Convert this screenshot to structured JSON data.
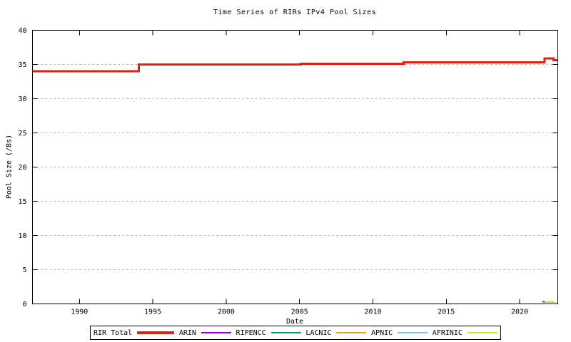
{
  "chart_data": {
    "type": "line",
    "style": "step",
    "title": "Time Series of RIRs IPv4 Pool Sizes",
    "xlabel": "Date",
    "ylabel": "Pool Size (/8s)",
    "xlim": [
      1986.8,
      2022.6
    ],
    "ylim": [
      0,
      40
    ],
    "xticks": [
      1990,
      1995,
      2000,
      2005,
      2010,
      2015,
      2020
    ],
    "yticks": [
      0,
      5,
      10,
      15,
      20,
      25,
      30,
      35,
      40
    ],
    "grid": "horizontal-dashed",
    "grid_color": "#b0b0b0",
    "axis_color": "#000000",
    "legend_position": "bottom-outside-boxed",
    "series": [
      {
        "name": "RIR Total",
        "color": "#dd2211",
        "line_width": 3,
        "points": [
          [
            1986.8,
            34.0
          ],
          [
            1994.05,
            34.0
          ],
          [
            1994.05,
            35.0
          ],
          [
            2005.1,
            35.0
          ],
          [
            2005.1,
            35.1
          ],
          [
            2012.1,
            35.1
          ],
          [
            2012.1,
            35.3
          ],
          [
            2021.7,
            35.3
          ],
          [
            2021.7,
            35.9
          ],
          [
            2022.3,
            35.9
          ],
          [
            2022.3,
            35.65
          ],
          [
            2022.6,
            35.65
          ]
        ]
      },
      {
        "name": "ARIN",
        "color": "#9400d3",
        "line_width": 2,
        "points": [
          [
            2021.55,
            0.3
          ],
          [
            2021.7,
            0.3
          ]
        ]
      },
      {
        "name": "RIPENCC",
        "color": "#00a27a",
        "line_width": 2,
        "points": []
      },
      {
        "name": "LACNIC",
        "color": "#e8a020",
        "line_width": 2,
        "points": []
      },
      {
        "name": "APNIC",
        "color": "#7fc4e8",
        "line_width": 2,
        "points": [
          [
            2021.7,
            0.1
          ],
          [
            2022.55,
            0.1
          ]
        ]
      },
      {
        "name": "AFRINIC",
        "color": "#e6e22e",
        "line_width": 2,
        "points": [
          [
            2021.7,
            0.3
          ],
          [
            2022.35,
            0.3
          ]
        ]
      }
    ]
  }
}
